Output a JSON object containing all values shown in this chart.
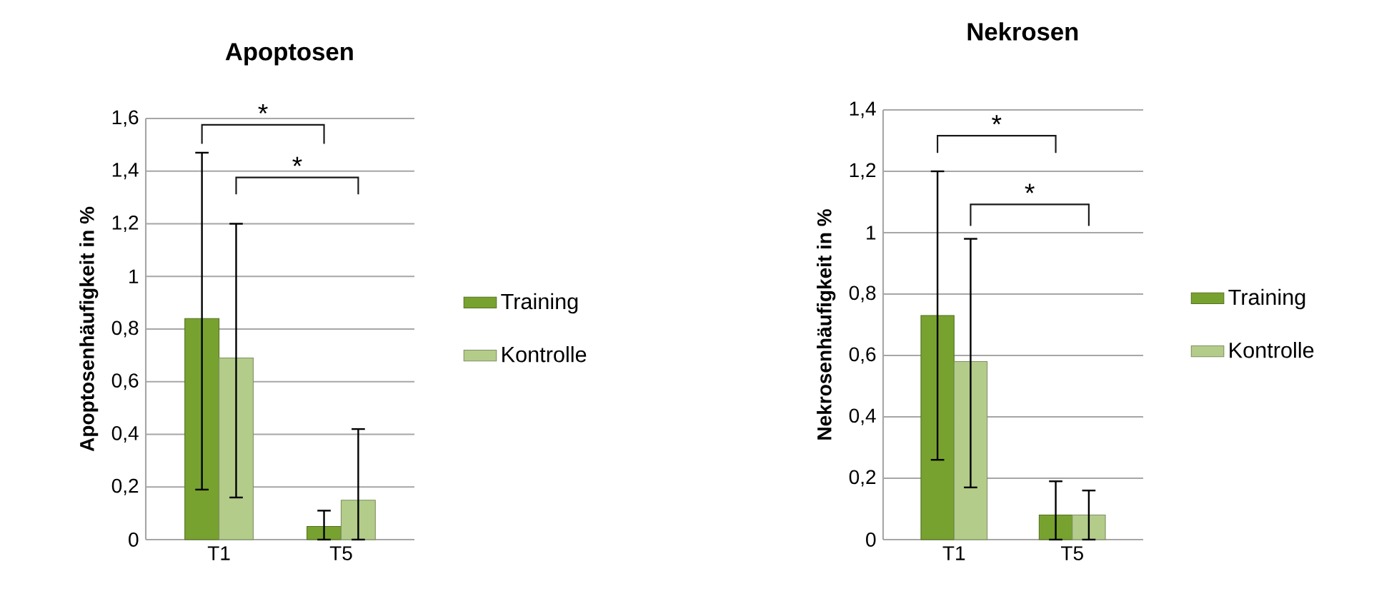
{
  "chart_data": [
    {
      "type": "bar",
      "title": "Apoptosen",
      "ylabel": "Apoptosenhäufigkeit in %",
      "categories": [
        "T1",
        "T5"
      ],
      "series": [
        {
          "name": "Training",
          "color": "#77a22f",
          "values": [
            0.84,
            0.05
          ],
          "errors": [
            [
              0.19,
              1.47
            ],
            [
              0,
              0.11
            ]
          ]
        },
        {
          "name": "Kontrolle",
          "color": "#b3cc8a",
          "values": [
            0.69,
            0.15
          ],
          "errors": [
            [
              0.16,
              1.2
            ],
            [
              0,
              0.42
            ]
          ]
        }
      ],
      "ylim": [
        0,
        1.6
      ],
      "yticks": [
        0,
        {
          "value": 0.2,
          "label": "0,2"
        },
        {
          "value": 0.4,
          "label": "0,4"
        },
        {
          "value": 0.6,
          "label": "0,6"
        },
        {
          "value": 0.8,
          "label": "0,8"
        },
        1,
        {
          "value": 1.2,
          "label": "1,2"
        },
        {
          "value": 1.4,
          "label": "1,4"
        },
        {
          "value": 1.6,
          "label": "1,6"
        }
      ],
      "grid": "y",
      "legend": "right",
      "annotations": [
        "*",
        "*"
      ]
    },
    {
      "type": "bar",
      "title": "Nekrosen",
      "ylabel": "Nekrosenhäufigkeit in %",
      "categories": [
        "T1",
        "T5"
      ],
      "series": [
        {
          "name": "Training",
          "color": "#77a22f",
          "values": [
            0.73,
            0.08
          ],
          "errors": [
            [
              0.26,
              1.2
            ],
            [
              0,
              0.19
            ]
          ]
        },
        {
          "name": "Kontrolle",
          "color": "#b3cc8a",
          "values": [
            0.58,
            0.08
          ],
          "errors": [
            [
              0.17,
              0.98
            ],
            [
              0,
              0.16
            ]
          ]
        }
      ],
      "ylim": [
        0,
        1.4
      ],
      "yticks": [
        0,
        {
          "value": 0.2,
          "label": "0,2"
        },
        {
          "value": 0.4,
          "label": "0,4"
        },
        {
          "value": 0.6,
          "label": "0,6"
        },
        {
          "value": 0.8,
          "label": "0,8"
        },
        1,
        {
          "value": 1.2,
          "label": "1,2"
        },
        {
          "value": 1.4,
          "label": "1,4"
        }
      ],
      "grid": "y",
      "legend": "right",
      "annotations": [
        "*",
        "*"
      ]
    }
  ]
}
